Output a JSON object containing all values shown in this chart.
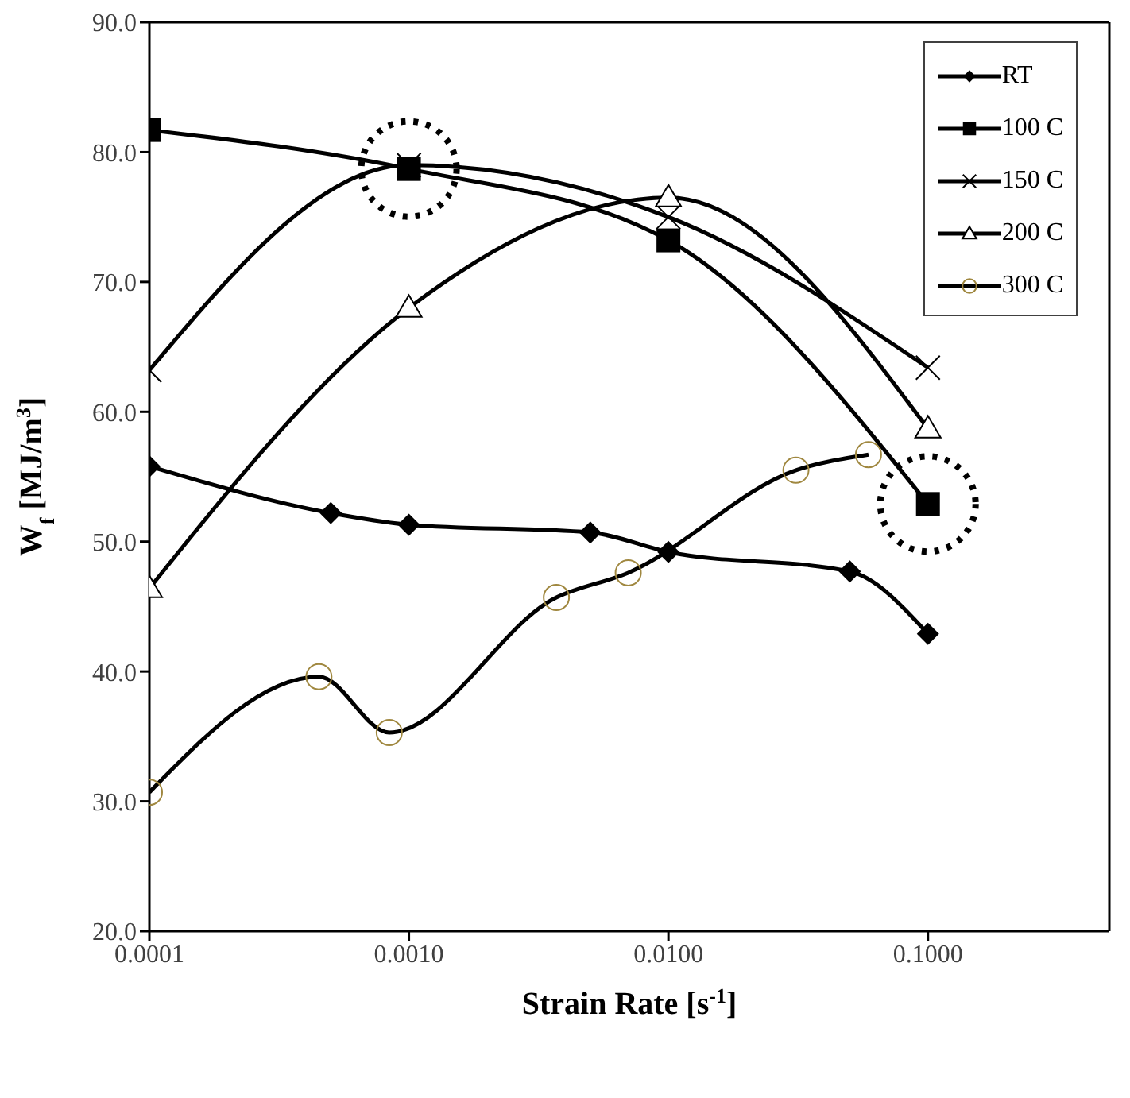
{
  "chart_data": {
    "type": "line",
    "xlabel": "Strain Rate [s$^{-1}$]",
    "ylabel": "W$_{f}$ [MJ/m$^{3}$]",
    "log": "x",
    "xlim": [
      0.0001,
      0.5
    ],
    "xticks": [
      {
        "value": 0.0001,
        "label": "0.0001"
      },
      {
        "value": 0.001,
        "label": "0.0010"
      },
      {
        "value": 0.01,
        "label": "0.0100"
      },
      {
        "value": 0.1,
        "label": "0.1000"
      }
    ],
    "ylim": [
      20,
      90
    ],
    "yticks": [
      {
        "value": 20,
        "label": "20.0"
      },
      {
        "value": 30,
        "label": "30.0"
      },
      {
        "value": 40,
        "label": "40.0"
      },
      {
        "value": 50,
        "label": "50.0"
      },
      {
        "value": 60,
        "label": "60.0"
      },
      {
        "value": 70,
        "label": "70.0"
      },
      {
        "value": 80,
        "label": "80.0"
      },
      {
        "value": 90,
        "label": "90.0"
      }
    ],
    "legend": "top right",
    "line_style": "solid",
    "series": [
      {
        "name": "RT",
        "color": "#000000",
        "marker": "diamond",
        "x": [
          0.0001,
          0.0005,
          0.001,
          0.005,
          0.01,
          0.05,
          0.1
        ],
        "values": [
          55.8,
          52.2,
          51.3,
          50.7,
          49.2,
          47.7,
          42.9
        ]
      },
      {
        "name": "100 C",
        "color": "#000000",
        "marker": "square",
        "x": [
          0.0001,
          0.001,
          0.01,
          0.1
        ],
        "values": [
          81.7,
          78.7,
          73.2,
          52.9
        ]
      },
      {
        "name": "150 C",
        "color": "#000000",
        "marker": "cross",
        "x": [
          0.0001,
          0.001,
          0.01,
          0.1
        ],
        "values": [
          63.2,
          79.0,
          75.0,
          63.4
        ]
      },
      {
        "name": "200 C",
        "color": "#000000",
        "marker": "triangle",
        "x": [
          0.0001,
          0.001,
          0.01,
          0.1
        ],
        "values": [
          46.4,
          68.0,
          76.5,
          58.7
        ]
      },
      {
        "name": "300 C",
        "color": "#000000",
        "marker": "circle",
        "colors": [
          "#a08840",
          "#a08840",
          "#a08840",
          "#a08840",
          "#a08840",
          "#a08840",
          "#a08840"
        ],
        "x": [
          0.0001,
          0.00045,
          0.00084,
          0.0037,
          0.007,
          0.031,
          0.059
        ],
        "values": [
          30.7,
          39.6,
          35.3,
          45.7,
          47.6,
          55.5,
          56.7
        ]
      }
    ]
  }
}
